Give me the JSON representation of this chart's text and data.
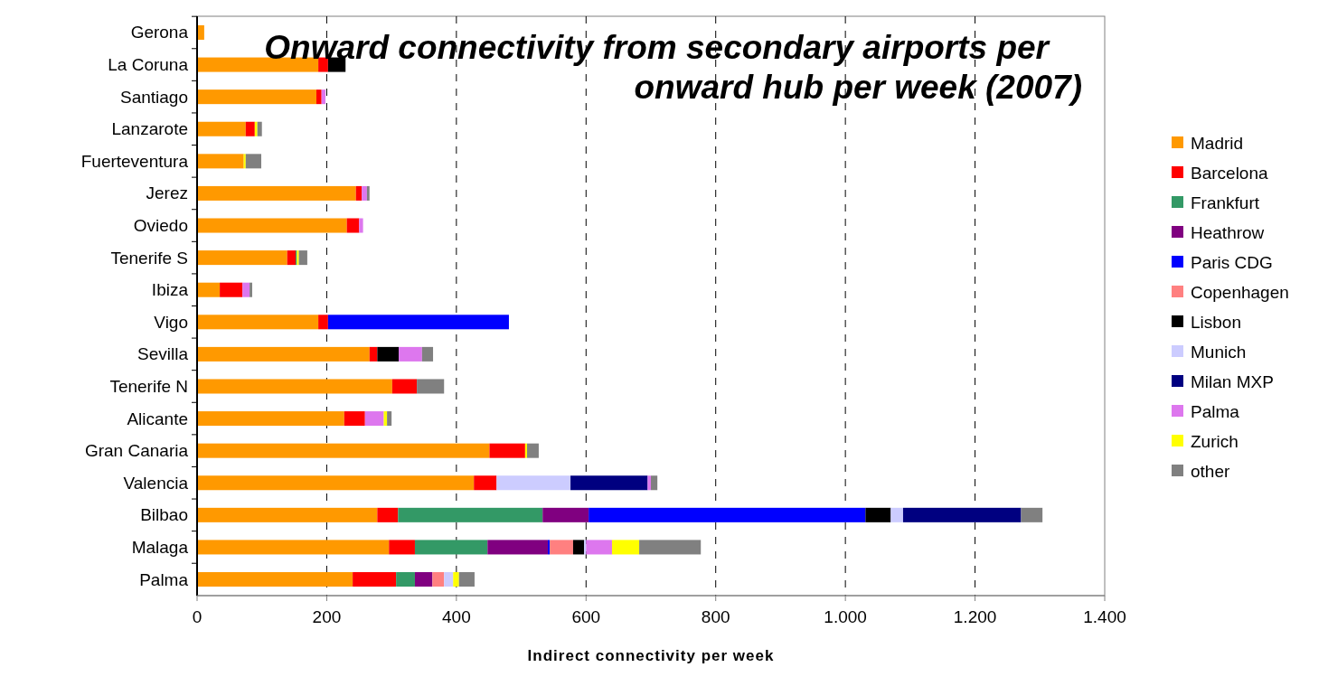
{
  "chart_data": {
    "type": "bar",
    "orientation": "horizontal",
    "stacked": true,
    "title": "Onward connectivity from secondary airports per onward hub per week (2007)",
    "xlabel": "Indirect connectivity per week",
    "categories": [
      "Gerona",
      "La Coruna",
      "Santiago",
      "Lanzarote",
      "Fuerteventura",
      "Jerez",
      "Oviedo",
      "Tenerife S",
      "Ibiza",
      "Vigo",
      "Sevilla",
      "Tenerife N",
      "Alicante",
      "Gran Canaria",
      "Valencia",
      "Bilbao",
      "Malaga",
      "Palma"
    ],
    "series": [
      {
        "name": "Madrid",
        "color": "#ff9900",
        "values": [
          11,
          187,
          184,
          75,
          72,
          245,
          231,
          139,
          35,
          187,
          266,
          301,
          227,
          451,
          427,
          278,
          296,
          240
        ]
      },
      {
        "name": "Barcelona",
        "color": "#ff0000",
        "values": [
          null,
          15,
          8,
          14,
          null,
          9,
          19,
          13,
          35,
          15,
          12,
          38,
          32,
          55,
          35,
          32,
          40,
          67
        ]
      },
      {
        "name": "Frankfurt",
        "color": "#339966",
        "values": [
          null,
          null,
          null,
          null,
          null,
          null,
          null,
          2,
          null,
          null,
          null,
          null,
          null,
          null,
          null,
          223,
          112,
          29
        ]
      },
      {
        "name": "Heathrow",
        "color": "#800080",
        "values": [
          null,
          null,
          null,
          null,
          null,
          null,
          null,
          null,
          null,
          null,
          null,
          null,
          null,
          null,
          null,
          71,
          93,
          27
        ]
      },
      {
        "name": "Paris CDG",
        "color": "#0000ff",
        "values": [
          null,
          null,
          null,
          null,
          null,
          null,
          null,
          null,
          null,
          279,
          null,
          null,
          null,
          null,
          null,
          427,
          3,
          null
        ]
      },
      {
        "name": "Copenhagen",
        "color": "#ff8080",
        "values": [
          null,
          null,
          null,
          null,
          null,
          null,
          null,
          null,
          null,
          null,
          null,
          null,
          null,
          null,
          null,
          null,
          36,
          18
        ]
      },
      {
        "name": "Lisbon",
        "color": "#000000",
        "values": [
          null,
          27,
          null,
          null,
          null,
          null,
          null,
          null,
          null,
          null,
          33,
          null,
          null,
          null,
          null,
          39,
          17,
          null
        ]
      },
      {
        "name": "Munich",
        "color": "#ccccff",
        "values": [
          null,
          null,
          null,
          null,
          null,
          null,
          null,
          null,
          null,
          null,
          null,
          null,
          null,
          null,
          114,
          19,
          3,
          14
        ]
      },
      {
        "name": "Milan MXP",
        "color": "#000080",
        "values": [
          null,
          null,
          null,
          null,
          null,
          null,
          null,
          null,
          null,
          null,
          null,
          null,
          null,
          null,
          119,
          182,
          null,
          null
        ]
      },
      {
        "name": "Palma",
        "color": "#dd77ee",
        "values": [
          null,
          null,
          6,
          null,
          null,
          8,
          6,
          null,
          11,
          null,
          36,
          null,
          29,
          null,
          5,
          null,
          40,
          null
        ]
      },
      {
        "name": "Zurich",
        "color": "#ffff00",
        "values": [
          null,
          null,
          null,
          4,
          3,
          null,
          null,
          3,
          null,
          null,
          null,
          null,
          5,
          3,
          null,
          null,
          42,
          9
        ]
      },
      {
        "name": "other",
        "color": "#808080",
        "values": [
          null,
          null,
          null,
          7,
          24,
          4,
          null,
          13,
          4,
          null,
          17,
          42,
          7,
          18,
          10,
          33,
          95,
          24
        ]
      }
    ],
    "xlim": [
      0,
      1400
    ],
    "xticks": [
      0,
      200,
      400,
      600,
      800,
      {
        "value": 1000,
        "label": "1.000"
      },
      {
        "value": 1200,
        "label": "1.200"
      },
      {
        "value": 1400,
        "label": "1.400"
      }
    ],
    "grid": "x",
    "legend": "right"
  }
}
